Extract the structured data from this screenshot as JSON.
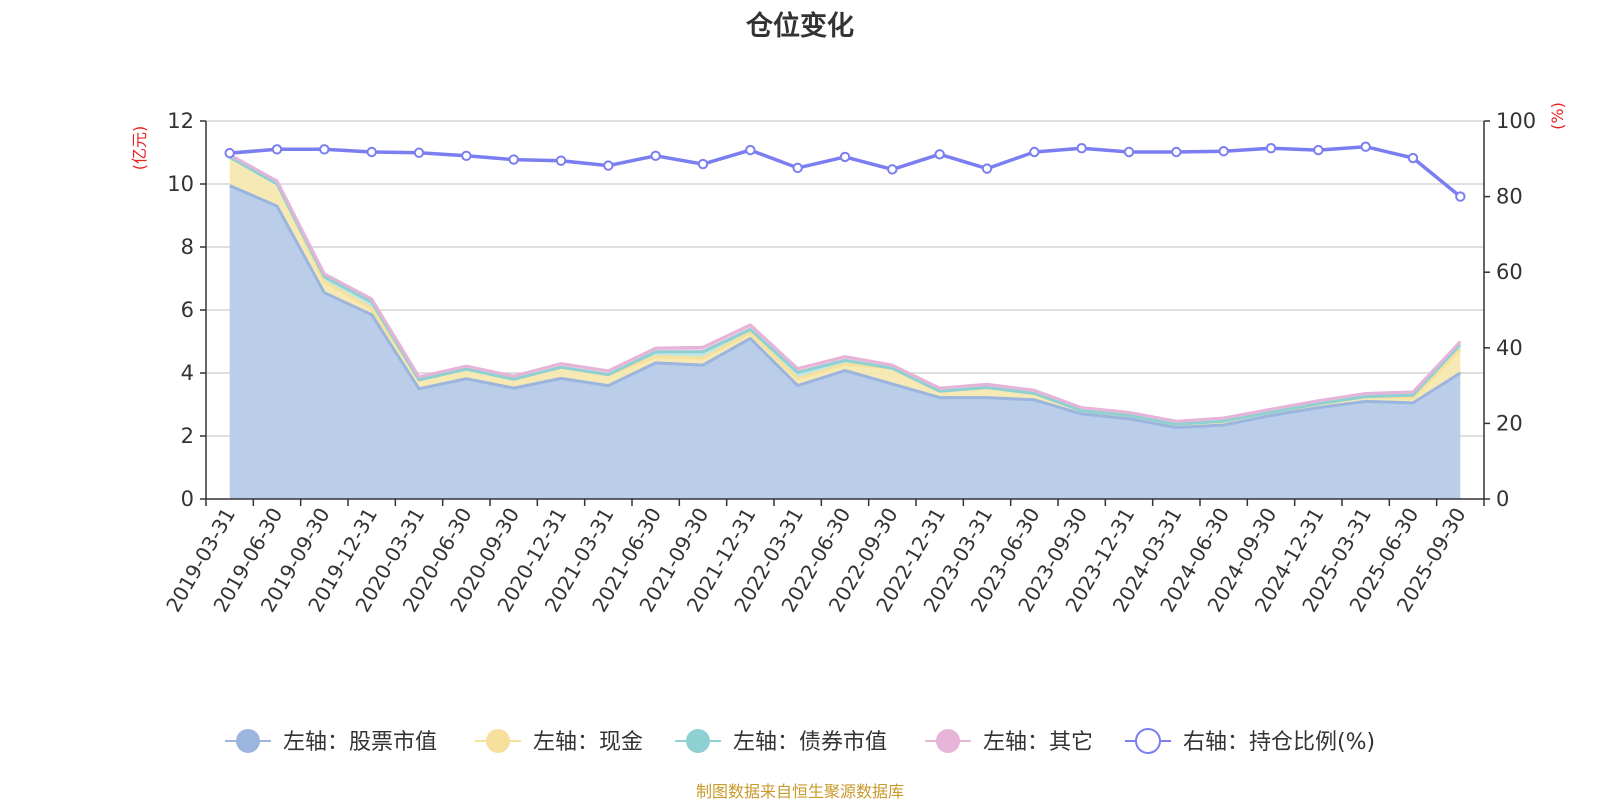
{
  "title": "仓位变化",
  "footer": "制图数据来自恒生聚源数据库",
  "chart_data": {
    "type": "area",
    "title": "仓位变化",
    "x": [
      "2019-03-31",
      "2019-06-30",
      "2019-09-30",
      "2019-12-31",
      "2020-03-31",
      "2020-06-30",
      "2020-09-30",
      "2020-12-31",
      "2021-03-31",
      "2021-06-30",
      "2021-09-30",
      "2021-12-31",
      "2022-03-31",
      "2022-06-30",
      "2022-09-30",
      "2022-12-31",
      "2023-03-31",
      "2023-06-30",
      "2023-09-30",
      "2023-12-31",
      "2024-03-31",
      "2024-06-30",
      "2024-09-30",
      "2024-12-31",
      "2025-03-31",
      "2025-06-30",
      "2025-09-30"
    ],
    "left_axis": {
      "label": "(亿元)",
      "ylim": [
        0,
        12
      ],
      "ticks": [
        0,
        2,
        4,
        6,
        8,
        10,
        12
      ]
    },
    "right_axis": {
      "label": "(%)",
      "ylim": [
        0,
        100
      ],
      "ticks": [
        0,
        20,
        40,
        60,
        80,
        100
      ]
    },
    "grid": true,
    "legend_position": "bottom",
    "stacked": true,
    "series": [
      {
        "name": "左轴：股票市值",
        "axis": "left",
        "kind": "area",
        "color": "#9bb5df",
        "fill": "#b6cae8",
        "values": [
          9.95,
          9.3,
          6.55,
          5.85,
          3.5,
          3.82,
          3.52,
          3.83,
          3.6,
          4.32,
          4.25,
          5.1,
          3.6,
          4.08,
          3.65,
          3.22,
          3.22,
          3.15,
          2.7,
          2.55,
          2.27,
          2.35,
          2.65,
          2.9,
          3.1,
          3.05,
          4.0
        ]
      },
      {
        "name": "左轴：现金",
        "axis": "left",
        "kind": "area",
        "color": "#f5e19b",
        "fill": "#f7e8b0",
        "values": [
          0.9,
          0.7,
          0.35,
          0.2,
          0.28,
          0.3,
          0.28,
          0.35,
          0.35,
          0.2,
          0.22,
          0.18,
          0.22,
          0.2,
          0.5,
          0.2,
          0.32,
          0.2,
          0.1,
          0.1,
          0.1,
          0.12,
          0.1,
          0.12,
          0.15,
          0.15,
          0.75
        ]
      },
      {
        "name": "左轴：债券市值",
        "axis": "left",
        "kind": "area",
        "color": "#8fd0d3",
        "fill": "#bfe5e3",
        "values": [
          0.0,
          0.0,
          0.15,
          0.2,
          0.0,
          0.0,
          0.0,
          0.0,
          0.0,
          0.15,
          0.2,
          0.1,
          0.2,
          0.12,
          0.0,
          0.0,
          0.0,
          0.0,
          0.0,
          0.0,
          0.0,
          0.0,
          0.0,
          0.0,
          0.0,
          0.1,
          0.15
        ]
      },
      {
        "name": "左轴：其它",
        "axis": "left",
        "kind": "area",
        "color": "#e5b4d8",
        "fill": "#ecc8e2",
        "values": [
          0.08,
          0.1,
          0.1,
          0.1,
          0.1,
          0.1,
          0.1,
          0.12,
          0.12,
          0.12,
          0.15,
          0.15,
          0.12,
          0.12,
          0.1,
          0.1,
          0.1,
          0.1,
          0.1,
          0.1,
          0.1,
          0.1,
          0.1,
          0.1,
          0.1,
          0.1,
          0.1
        ]
      },
      {
        "name": "右轴：持仓比例(%)",
        "axis": "right",
        "kind": "line",
        "color": "#7b7ef0",
        "values": [
          91.5,
          92.5,
          92.5,
          91.8,
          91.6,
          90.8,
          89.8,
          89.5,
          88.2,
          90.8,
          88.6,
          92.3,
          87.6,
          90.5,
          87.2,
          91.2,
          87.4,
          91.8,
          92.8,
          91.8,
          91.8,
          92.0,
          92.8,
          92.3,
          93.2,
          90.2,
          80.0
        ]
      }
    ]
  }
}
